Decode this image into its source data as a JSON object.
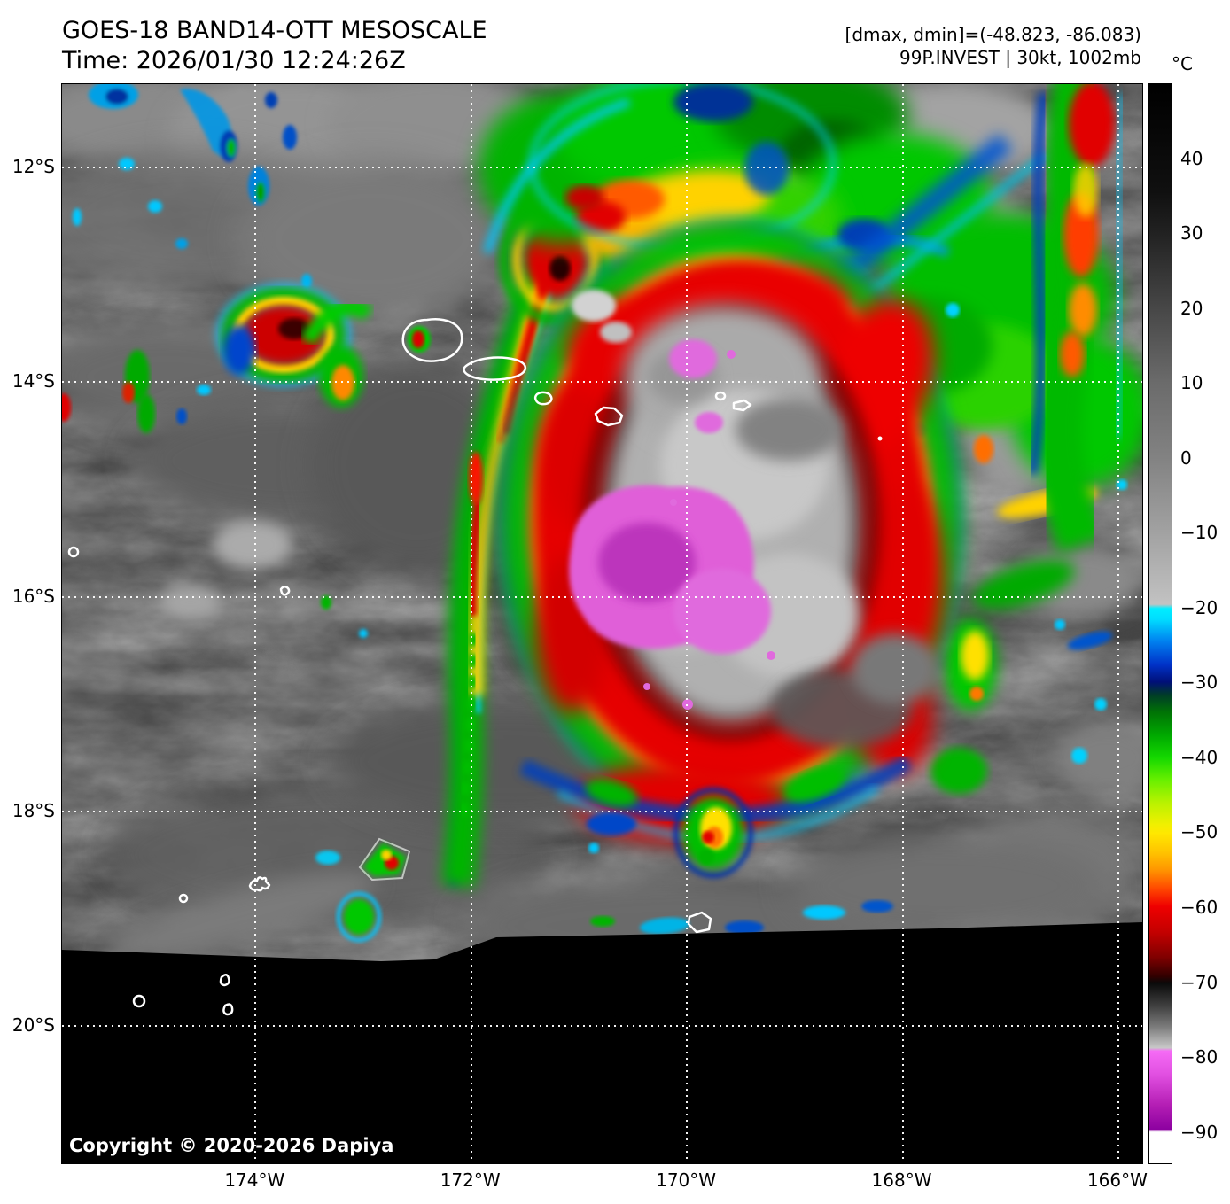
{
  "header": {
    "title": "GOES-18 BAND14-OTT MESOSCALE",
    "time": "Time: 2026/01/30 12:24:26Z",
    "stats": "[dmax, dmin]=(-48.823, -86.083)",
    "storm": "99P.INVEST | 30kt, 1002mb"
  },
  "colorbar": {
    "unit": "°C",
    "value_range": [
      50,
      -94.3
    ],
    "ticks": [
      {
        "label": "40",
        "value": 40
      },
      {
        "label": "30",
        "value": 30
      },
      {
        "label": "20",
        "value": 20
      },
      {
        "label": "10",
        "value": 10
      },
      {
        "label": "0",
        "value": 0
      },
      {
        "label": "−10",
        "value": -10
      },
      {
        "label": "−20",
        "value": -20
      },
      {
        "label": "−30",
        "value": -30
      },
      {
        "label": "−40",
        "value": -40
      },
      {
        "label": "−50",
        "value": -50
      },
      {
        "label": "−60",
        "value": -60
      },
      {
        "label": "−70",
        "value": -70
      },
      {
        "label": "−80",
        "value": -80
      },
      {
        "label": "−90",
        "value": -90
      }
    ],
    "colormap_stops": [
      [
        50,
        "#000000"
      ],
      [
        0,
        "#828282"
      ],
      [
        -19.8,
        "#c2c2c2"
      ],
      [
        -20,
        "#00eeff"
      ],
      [
        -30,
        "#001078"
      ],
      [
        -40,
        "#14d800"
      ],
      [
        -50,
        "#ffe800"
      ],
      [
        -55,
        "#ff9600"
      ],
      [
        -60,
        "#ef0000"
      ],
      [
        -70,
        "#0a0a0a"
      ],
      [
        -78.8,
        "#c8c8c8"
      ],
      [
        -79,
        "#f56bf5"
      ],
      [
        -90,
        "#8c00a0"
      ],
      [
        -94,
        "#ffffff"
      ]
    ]
  },
  "map": {
    "lat_ticks": [
      "12°S",
      "14°S",
      "16°S",
      "18°S",
      "20°S"
    ],
    "lon_ticks": [
      "174°W",
      "172°W",
      "170°W",
      "168°W",
      "166°W"
    ],
    "copyright": "Copyright © 2020-2026 Dapiya",
    "grid_color": "#ffffff"
  }
}
